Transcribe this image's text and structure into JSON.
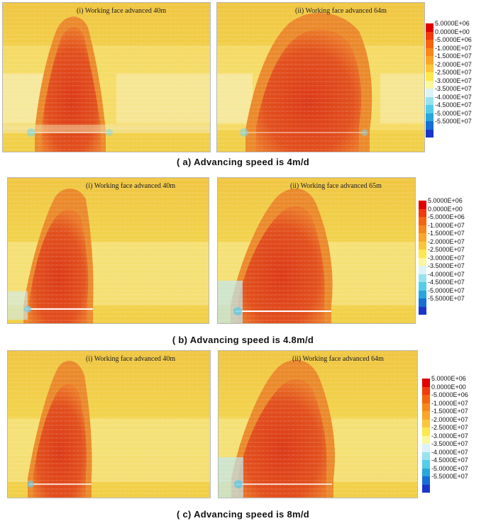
{
  "colors": {
    "background_field": "#f2d64a",
    "hot_zone": "#e04a1c",
    "hot_core": "#d9381a",
    "cool_zone": "#bfe7ef",
    "scale": [
      "#e00000",
      "#f23a0c",
      "#f5640f",
      "#f7871a",
      "#f9a629",
      "#fbc63a",
      "#fde84d",
      "#fbf79e",
      "#dcf3f7",
      "#97e2ef",
      "#55cde8",
      "#27a7dd",
      "#166fd4",
      "#1a35c9"
    ]
  },
  "scale_labels": [
    "5.0000E+06",
    "0.0000E+00",
    "-5.0000E+06",
    "-1.0000E+07",
    "-1.5000E+07",
    "-2.0000E+07",
    "-2.5000E+07",
    "-3.0000E+07",
    "-3.5000E+07",
    "-4.0000E+07",
    "-4.5000E+07",
    "-5.0000E+07",
    "-5.5000E+07"
  ],
  "groups": [
    {
      "caption": "( a) Advancing speed is 4m/d",
      "left_title": "(i) Working face advanced 40m",
      "right_title": "(ii) Working face advanced 64m"
    },
    {
      "caption": "( b) Advancing speed is 4.8m/d",
      "left_title": "(i) Working face advanced 40m",
      "right_title": "(ii) Working face advanced 65m"
    },
    {
      "caption": "( c) Advancing speed is 8m/d",
      "left_title": "(i) Working face advanced 40m",
      "right_title": "(ii) Working face advanced 64m"
    }
  ]
}
